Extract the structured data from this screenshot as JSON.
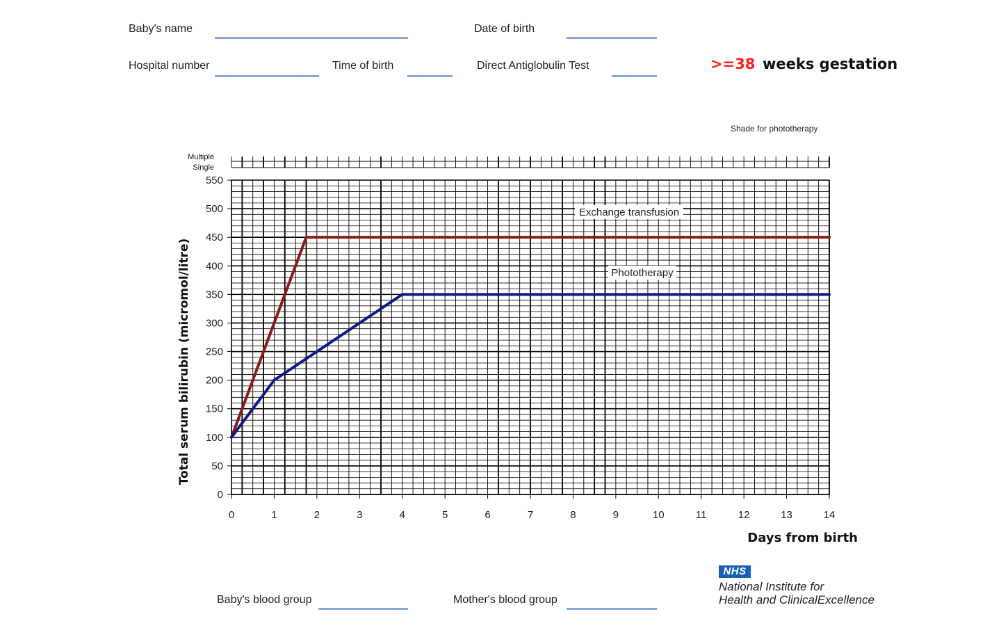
{
  "form": {
    "babys_name_label": "Baby's name",
    "date_of_birth_label": "Date of birth",
    "hospital_number_label": "Hospital number",
    "time_of_birth_label": "Time of birth",
    "dat_label": "Direct Antiglobulin Test",
    "gestation_value": ">=38",
    "gestation_label": "weeks gestation",
    "babys_blood_group_label": "Baby's blood group",
    "mothers_blood_group_label": "Mother's blood group",
    "shade_label": "Shade for phototherapy"
  },
  "branding": {
    "nhs_logo": "NHS",
    "nice_line1": "National Institute for",
    "nice_line2": "Health and ClinicalExcellence"
  },
  "colors": {
    "exchange": "#8b1a1a",
    "phototherapy": "#0d1a80",
    "form_line": "#86a8d4",
    "gestation": "#ff2020"
  },
  "chart_data": {
    "type": "line",
    "xlabel": "Days from birth",
    "ylabel": "Total serum bilirubin  (micromol/litre)",
    "xlim": [
      0,
      14
    ],
    "ylim": [
      0,
      550
    ],
    "x_ticks": [
      "0",
      "1",
      "2",
      "3",
      "4",
      "5",
      "6",
      "7",
      "8",
      "9",
      "10",
      "11",
      "12",
      "13",
      "14"
    ],
    "y_ticks": [
      "0",
      "50",
      "100",
      "150",
      "200",
      "250",
      "300",
      "350",
      "400",
      "450",
      "500",
      "550"
    ],
    "grid": true,
    "phototherapy_rows": [
      "Multiple",
      "Single"
    ],
    "series": [
      {
        "name": "Exchange transfusion",
        "x": [
          0,
          1,
          1.75,
          14
        ],
        "y": [
          100,
          300,
          450,
          450
        ]
      },
      {
        "name": "Phototherapy",
        "x": [
          0,
          1,
          4,
          14
        ],
        "y": [
          100,
          200,
          350,
          350
        ]
      }
    ]
  }
}
